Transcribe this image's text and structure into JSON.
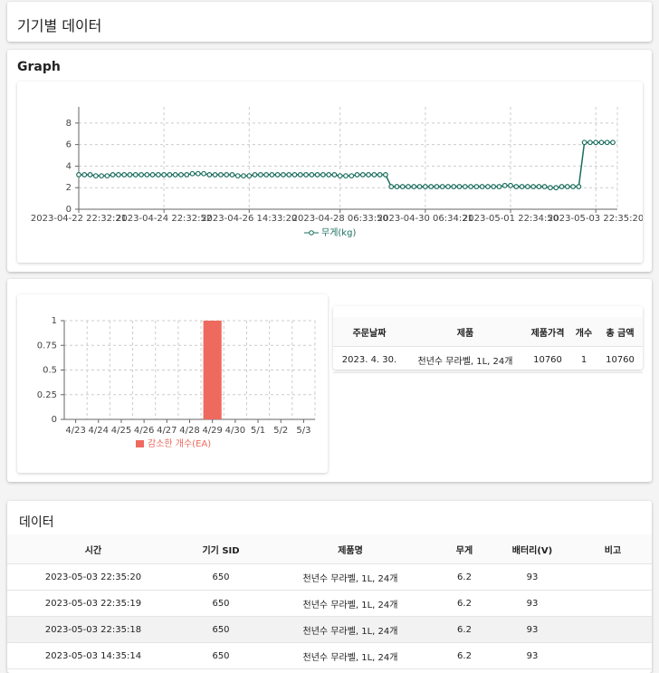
{
  "header": {
    "title": "기기별 데이터"
  },
  "graph_card": {
    "title": "Graph"
  },
  "chart_data": [
    {
      "type": "line",
      "x": [
        "2023-04-22 22:32:21",
        null,
        null,
        null,
        null,
        null,
        null,
        null,
        null,
        null,
        null,
        null,
        null,
        null,
        null,
        "2023-04-24 22:32:52",
        null,
        null,
        null,
        null,
        null,
        null,
        null,
        null,
        null,
        null,
        null,
        null,
        null,
        null,
        "2023-04-26 14:33:20",
        null,
        null,
        null,
        null,
        null,
        null,
        null,
        null,
        null,
        null,
        null,
        null,
        null,
        null,
        null,
        "2023-04-28 06:33:50",
        null,
        null,
        null,
        null,
        null,
        null,
        null,
        null,
        null,
        null,
        null,
        null,
        null,
        null,
        "2023-04-30 06:34:21",
        null,
        null,
        null,
        null,
        null,
        null,
        null,
        null,
        null,
        null,
        null,
        null,
        null,
        null,
        "2023-05-01 22:34:50",
        null,
        null,
        null,
        null,
        null,
        null,
        null,
        null,
        null,
        null,
        null,
        null,
        null,
        null,
        "2023-05-03 22:35:20",
        null,
        null,
        null
      ],
      "series": [
        {
          "name": "무게(kg)",
          "color": "#1b6e5e",
          "values": [
            3.2,
            3.2,
            3.2,
            3.1,
            3.1,
            3.1,
            3.2,
            3.2,
            3.2,
            3.2,
            3.2,
            3.2,
            3.2,
            3.2,
            3.2,
            3.2,
            3.2,
            3.2,
            3.2,
            3.2,
            3.3,
            3.3,
            3.3,
            3.2,
            3.2,
            3.2,
            3.2,
            3.2,
            3.1,
            3.1,
            3.1,
            3.2,
            3.2,
            3.2,
            3.2,
            3.2,
            3.2,
            3.2,
            3.2,
            3.2,
            3.2,
            3.2,
            3.2,
            3.2,
            3.2,
            3.2,
            3.1,
            3.1,
            3.1,
            3.2,
            3.2,
            3.2,
            3.2,
            3.2,
            3.2,
            2.1,
            2.1,
            2.1,
            2.1,
            2.1,
            2.1,
            2.1,
            2.1,
            2.1,
            2.1,
            2.1,
            2.1,
            2.1,
            2.1,
            2.1,
            2.1,
            2.1,
            2.1,
            2.1,
            2.1,
            2.2,
            2.2,
            2.1,
            2.1,
            2.1,
            2.1,
            2.1,
            2.1,
            2.0,
            2.0,
            2.1,
            2.1,
            2.1,
            2.1,
            6.2,
            6.2,
            6.2,
            6.2,
            6.2,
            6.2
          ]
        }
      ],
      "ylim": [
        0,
        9.5
      ],
      "yticks": [
        0,
        2,
        4,
        6,
        8
      ],
      "grid": true,
      "legend": "bottom"
    },
    {
      "type": "bar",
      "categories": [
        "4/23",
        "4/24",
        "4/25",
        "4/26",
        "4/27",
        "4/28",
        "4/29",
        "4/30",
        "5/1",
        "5/2",
        "5/3"
      ],
      "series": [
        {
          "name": "감소한 개수(EA)",
          "color": "#ee6a5f",
          "values": [
            0,
            0,
            0,
            0,
            0,
            0,
            1,
            0,
            0,
            0,
            0
          ]
        }
      ],
      "ylim": [
        0,
        1
      ],
      "yticks": [
        0,
        0.25,
        0.5,
        0.75,
        1
      ],
      "grid": true,
      "legend": "bottom"
    }
  ],
  "order_table": {
    "columns": [
      "주문날짜",
      "제품",
      "제품가격",
      "개수",
      "총 금액"
    ],
    "rows": [
      [
        "2023. 4. 30.",
        "천년수 무라벨, 1L, 24개",
        "10760",
        "1",
        "10760"
      ]
    ]
  },
  "data_card": {
    "title": "데이터"
  },
  "data_table": {
    "columns": [
      "시간",
      "기기 SID",
      "제품명",
      "무게",
      "배터리(V)",
      "비고"
    ],
    "rows": [
      [
        "2023-05-03 22:35:20",
        "650",
        "천년수 무라벨, 1L, 24개",
        "6.2",
        "93",
        ""
      ],
      [
        "2023-05-03 22:35:19",
        "650",
        "천년수 무라벨, 1L, 24개",
        "6.2",
        "93",
        ""
      ],
      [
        "2023-05-03 22:35:18",
        "650",
        "천년수 무라벨, 1L, 24개",
        "6.2",
        "93",
        ""
      ],
      [
        "2023-05-03 14:35:14",
        "650",
        "천년수 무라벨, 1L, 24개",
        "6.2",
        "93",
        ""
      ]
    ]
  }
}
